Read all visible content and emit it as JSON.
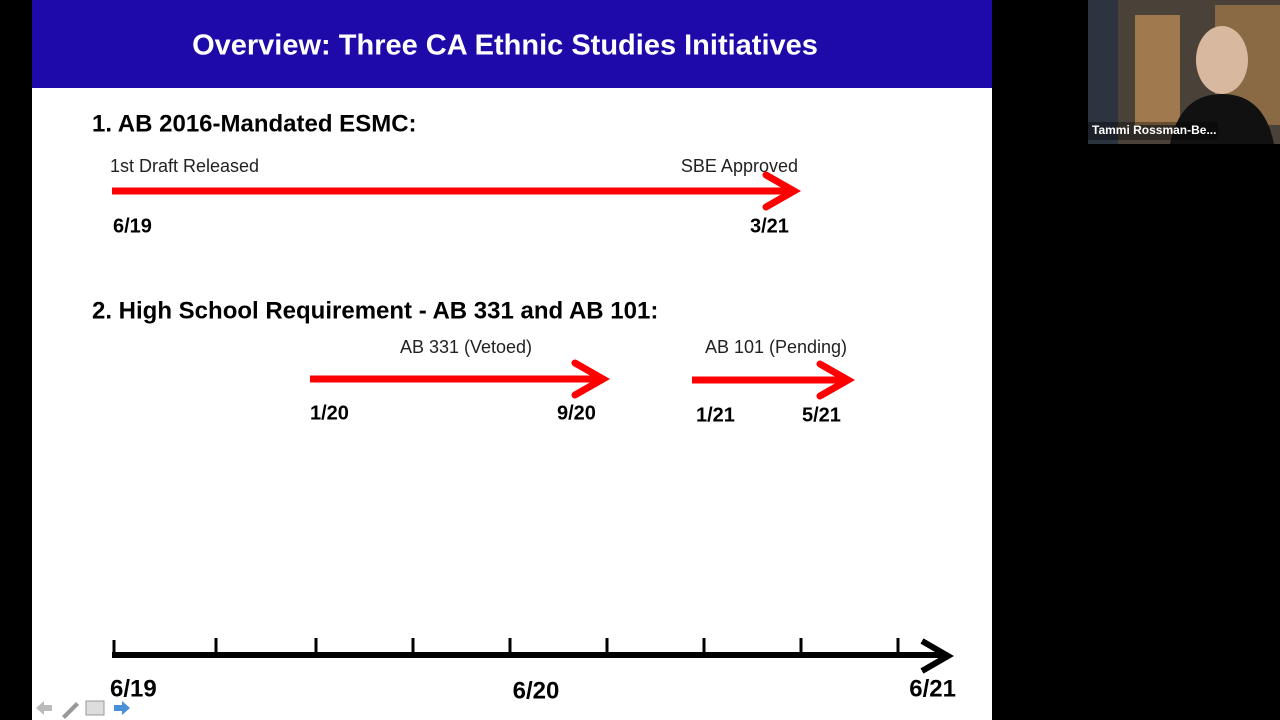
{
  "slide": {
    "title": "Overview: Three CA Ethnic Studies Initiatives",
    "sections": [
      {
        "heading": "1. AB 2016-Mandated ESMC:",
        "events": [
          {
            "label": "1st Draft Released",
            "date": "6/19"
          },
          {
            "label": "SBE Approved",
            "date": "3/21"
          }
        ]
      },
      {
        "heading": "2. High School Requirement - AB 331 and AB 101:",
        "bills": [
          {
            "label": "AB 331 (Vetoed)",
            "start": "1/20",
            "end": "9/20"
          },
          {
            "label": "AB 101 (Pending)",
            "start": "1/21",
            "end": "5/21"
          }
        ]
      }
    ],
    "timeline": [
      "6/19",
      "6/20",
      "6/21"
    ]
  },
  "participant": {
    "name": "Tammi Rossman-Be..."
  }
}
